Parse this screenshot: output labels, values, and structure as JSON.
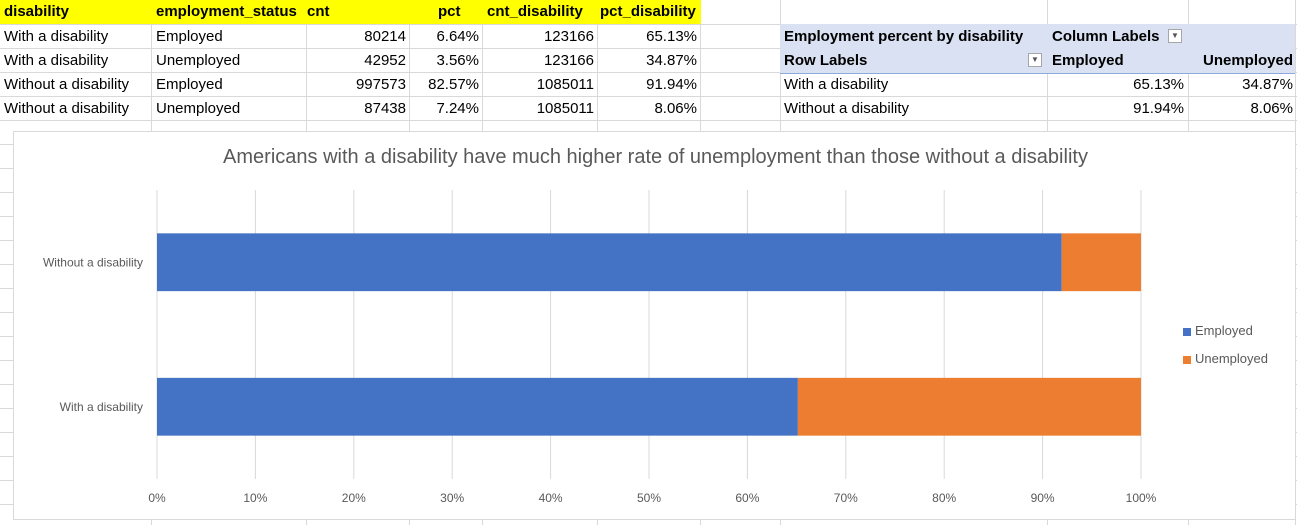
{
  "table": {
    "headers": [
      "disability",
      "employment_status",
      "cnt",
      "pct",
      "cnt_disability",
      "pct_disability"
    ],
    "rows": [
      [
        "With a disability",
        "Employed",
        "80214",
        "6.64%",
        "123166",
        "65.13%"
      ],
      [
        "With a disability",
        "Unemployed",
        "42952",
        "3.56%",
        "123166",
        "34.87%"
      ],
      [
        "Without a disability",
        "Employed",
        "997573",
        "82.57%",
        "1085011",
        "91.94%"
      ],
      [
        "Without a disability",
        "Unemployed",
        "87438",
        "7.24%",
        "1085011",
        "8.06%"
      ]
    ]
  },
  "pivot": {
    "title": "Employment percent by disability",
    "column_labels": "Column Labels",
    "row_labels": "Row Labels",
    "col1": "Employed",
    "col2": "Unemployed",
    "rows": [
      {
        "label": "With a disability",
        "employed": "65.13%",
        "unemployed": "34.87%"
      },
      {
        "label": "Without a disability",
        "employed": "91.94%",
        "unemployed": "8.06%"
      }
    ]
  },
  "colors": {
    "header_fill": "#ffff00",
    "pivot_fill": "#d9e1f2",
    "employed": "#4472c4",
    "unemployed": "#ed7d31"
  },
  "chart_data": {
    "type": "bar",
    "orientation": "horizontal",
    "stacked": true,
    "title": "Americans with a disability have much higher rate of unemployment than those without a disability",
    "categories": [
      "With a disability",
      "Without a disability"
    ],
    "series": [
      {
        "name": "Employed",
        "values": [
          65.13,
          91.94
        ]
      },
      {
        "name": "Unemployed",
        "values": [
          34.87,
          8.06
        ]
      }
    ],
    "xlim": [
      0,
      100
    ],
    "xticks": [
      "0%",
      "10%",
      "20%",
      "30%",
      "40%",
      "50%",
      "60%",
      "70%",
      "80%",
      "90%",
      "100%"
    ],
    "grid": true,
    "legend": "right"
  }
}
